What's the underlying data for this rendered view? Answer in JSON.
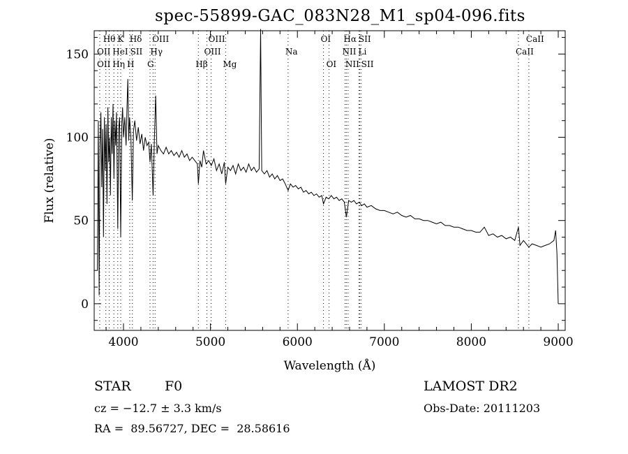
{
  "chart_data": {
    "type": "line",
    "title": "spec-55899-GAC_083N28_M1_sp04-096.fits",
    "xlabel": "Wavelength (Å)",
    "ylabel": "Flux (relative)",
    "xlim": [
      3663,
      9080
    ],
    "ylim": [
      -16,
      164
    ],
    "xticks": [
      4000,
      5000,
      6000,
      7000,
      8000,
      9000
    ],
    "yticks": [
      0,
      50,
      100,
      150
    ],
    "grid": false,
    "series": [
      {
        "name": "spectrum",
        "points": [
          [
            3700,
            20
          ],
          [
            3710,
            110
          ],
          [
            3720,
            5
          ],
          [
            3730,
            95
          ],
          [
            3740,
            115
          ],
          [
            3750,
            70
          ],
          [
            3760,
            105
          ],
          [
            3770,
            40
          ],
          [
            3780,
            112
          ],
          [
            3790,
            80
          ],
          [
            3800,
            108
          ],
          [
            3810,
            60
          ],
          [
            3820,
            118
          ],
          [
            3830,
            85
          ],
          [
            3840,
            100
          ],
          [
            3850,
            65
          ],
          [
            3860,
            112
          ],
          [
            3870,
            90
          ],
          [
            3880,
            120
          ],
          [
            3890,
            75
          ],
          [
            3900,
            110
          ],
          [
            3910,
            95
          ],
          [
            3920,
            115
          ],
          [
            3934,
            45
          ],
          [
            3945,
            105
          ],
          [
            3955,
            112
          ],
          [
            3968,
            40
          ],
          [
            3980,
            108
          ],
          [
            3990,
            118
          ],
          [
            4000,
            100
          ],
          [
            4015,
            112
          ],
          [
            4030,
            95
          ],
          [
            4040,
            118
          ],
          [
            4050,
            135
          ],
          [
            4060,
            98
          ],
          [
            4070,
            112
          ],
          [
            4085,
            100
          ],
          [
            4101,
            62
          ],
          [
            4115,
            104
          ],
          [
            4130,
            110
          ],
          [
            4150,
            98
          ],
          [
            4170,
            106
          ],
          [
            4190,
            96
          ],
          [
            4210,
            102
          ],
          [
            4230,
            92
          ],
          [
            4250,
            100
          ],
          [
            4270,
            95
          ],
          [
            4290,
            97
          ],
          [
            4305,
            85
          ],
          [
            4320,
            96
          ],
          [
            4340,
            65
          ],
          [
            4355,
            98
          ],
          [
            4370,
            125
          ],
          [
            4385,
            90
          ],
          [
            4400,
            95
          ],
          [
            4430,
            92
          ],
          [
            4460,
            90
          ],
          [
            4490,
            94
          ],
          [
            4520,
            90
          ],
          [
            4550,
            92
          ],
          [
            4580,
            89
          ],
          [
            4610,
            91
          ],
          [
            4640,
            88
          ],
          [
            4670,
            92
          ],
          [
            4700,
            88
          ],
          [
            4730,
            90
          ],
          [
            4760,
            86
          ],
          [
            4790,
            88
          ],
          [
            4820,
            86
          ],
          [
            4850,
            84
          ],
          [
            4861,
            72
          ],
          [
            4880,
            86
          ],
          [
            4900,
            82
          ],
          [
            4920,
            92
          ],
          [
            4950,
            84
          ],
          [
            4980,
            86
          ],
          [
            5010,
            83
          ],
          [
            5040,
            87
          ],
          [
            5070,
            80
          ],
          [
            5100,
            84
          ],
          [
            5130,
            78
          ],
          [
            5160,
            85
          ],
          [
            5175,
            72
          ],
          [
            5200,
            82
          ],
          [
            5230,
            80
          ],
          [
            5260,
            83
          ],
          [
            5290,
            78
          ],
          [
            5320,
            84
          ],
          [
            5350,
            80
          ],
          [
            5380,
            82
          ],
          [
            5410,
            79
          ],
          [
            5440,
            84
          ],
          [
            5470,
            80
          ],
          [
            5500,
            82
          ],
          [
            5530,
            79
          ],
          [
            5560,
            81
          ],
          [
            5577,
            165
          ],
          [
            5590,
            80
          ],
          [
            5620,
            78
          ],
          [
            5650,
            80
          ],
          [
            5680,
            76
          ],
          [
            5710,
            78
          ],
          [
            5740,
            75
          ],
          [
            5770,
            77
          ],
          [
            5800,
            74
          ],
          [
            5830,
            75
          ],
          [
            5860,
            72
          ],
          [
            5893,
            68
          ],
          [
            5920,
            72
          ],
          [
            5950,
            70
          ],
          [
            5980,
            71
          ],
          [
            6010,
            69
          ],
          [
            6040,
            70
          ],
          [
            6070,
            67
          ],
          [
            6100,
            68
          ],
          [
            6130,
            66
          ],
          [
            6160,
            67
          ],
          [
            6190,
            65
          ],
          [
            6220,
            66
          ],
          [
            6250,
            64
          ],
          [
            6280,
            65
          ],
          [
            6300,
            60
          ],
          [
            6330,
            64
          ],
          [
            6360,
            63
          ],
          [
            6390,
            65
          ],
          [
            6420,
            63
          ],
          [
            6450,
            64
          ],
          [
            6480,
            62
          ],
          [
            6510,
            63
          ],
          [
            6540,
            61
          ],
          [
            6563,
            52
          ],
          [
            6590,
            62
          ],
          [
            6620,
            61
          ],
          [
            6650,
            62
          ],
          [
            6680,
            60
          ],
          [
            6710,
            61
          ],
          [
            6740,
            59
          ],
          [
            6770,
            60
          ],
          [
            6800,
            58
          ],
          [
            6850,
            59
          ],
          [
            6900,
            57
          ],
          [
            6950,
            56
          ],
          [
            7000,
            56
          ],
          [
            7050,
            55
          ],
          [
            7100,
            54
          ],
          [
            7150,
            55
          ],
          [
            7200,
            53
          ],
          [
            7250,
            52
          ],
          [
            7300,
            53
          ],
          [
            7350,
            51
          ],
          [
            7400,
            51
          ],
          [
            7450,
            50
          ],
          [
            7500,
            50
          ],
          [
            7550,
            49
          ],
          [
            7600,
            48
          ],
          [
            7650,
            49
          ],
          [
            7700,
            47
          ],
          [
            7750,
            47
          ],
          [
            7800,
            46
          ],
          [
            7850,
            46
          ],
          [
            7900,
            45
          ],
          [
            7950,
            44
          ],
          [
            8000,
            44
          ],
          [
            8050,
            43
          ],
          [
            8100,
            43
          ],
          [
            8150,
            46
          ],
          [
            8200,
            41
          ],
          [
            8250,
            42
          ],
          [
            8300,
            40
          ],
          [
            8350,
            41
          ],
          [
            8400,
            39
          ],
          [
            8450,
            40
          ],
          [
            8500,
            38
          ],
          [
            8542,
            46
          ],
          [
            8560,
            35
          ],
          [
            8600,
            38
          ],
          [
            8662,
            34
          ],
          [
            8700,
            36
          ],
          [
            8750,
            35
          ],
          [
            8800,
            34
          ],
          [
            8850,
            35
          ],
          [
            8900,
            36
          ],
          [
            8950,
            38
          ],
          [
            8970,
            44
          ],
          [
            8985,
            30
          ],
          [
            9000,
            0
          ]
        ]
      }
    ],
    "line_markers": [
      {
        "label": "Hθ",
        "wavelength": 3797,
        "row": 1
      },
      {
        "label": "K",
        "wavelength": 3934,
        "row": 1
      },
      {
        "label": "Hδ",
        "wavelength": 4102,
        "row": 1
      },
      {
        "label": "OIII",
        "wavelength": 4363,
        "row": 1
      },
      {
        "label": "OIII",
        "wavelength": 5007,
        "row": 1
      },
      {
        "label": "OI",
        "wavelength": 6300,
        "row": 1
      },
      {
        "label": "Hα",
        "wavelength": 6563,
        "row": 1
      },
      {
        "label": "SII",
        "wavelength": 6717,
        "row": 1
      },
      {
        "label": "CaII",
        "wavelength": 8662,
        "row": 1
      },
      {
        "label": "OII",
        "wavelength": 3727,
        "row": 2
      },
      {
        "label": "HeI",
        "wavelength": 3889,
        "row": 2
      },
      {
        "label": "SII",
        "wavelength": 4072,
        "row": 2
      },
      {
        "label": "Hγ",
        "wavelength": 4340,
        "row": 2
      },
      {
        "label": "OIII",
        "wavelength": 4959,
        "row": 2
      },
      {
        "label": "Na",
        "wavelength": 5893,
        "row": 2
      },
      {
        "label": "NII",
        "wavelength": 6548,
        "row": 2
      },
      {
        "label": "Li",
        "wavelength": 6708,
        "row": 2
      },
      {
        "label": "CaII",
        "wavelength": 8542,
        "row": 2
      },
      {
        "label": "OII",
        "wavelength": 3727,
        "row": 3
      },
      {
        "label": "Hη",
        "wavelength": 3835,
        "row": 3
      },
      {
        "label": "H",
        "wavelength": 3968,
        "row": 3
      },
      {
        "label": "G",
        "wavelength": 4305,
        "row": 3
      },
      {
        "label": "Hβ",
        "wavelength": 4861,
        "row": 3
      },
      {
        "label": "Mg",
        "wavelength": 5175,
        "row": 3
      },
      {
        "label": "OI",
        "wavelength": 6364,
        "row": 3
      },
      {
        "label": "NII",
        "wavelength": 6583,
        "row": 3
      },
      {
        "label": "SII",
        "wavelength": 6731,
        "row": 3
      }
    ]
  },
  "info": {
    "object_class": "STAR",
    "subclass": "F0",
    "redshift_text": "cz = −12.7 ± 3.3 km/s",
    "coords_text": "RA =  89.56727, DEC =  28.58616",
    "survey": "LAMOST DR2",
    "obs_date": "Obs-Date: 20111203"
  }
}
